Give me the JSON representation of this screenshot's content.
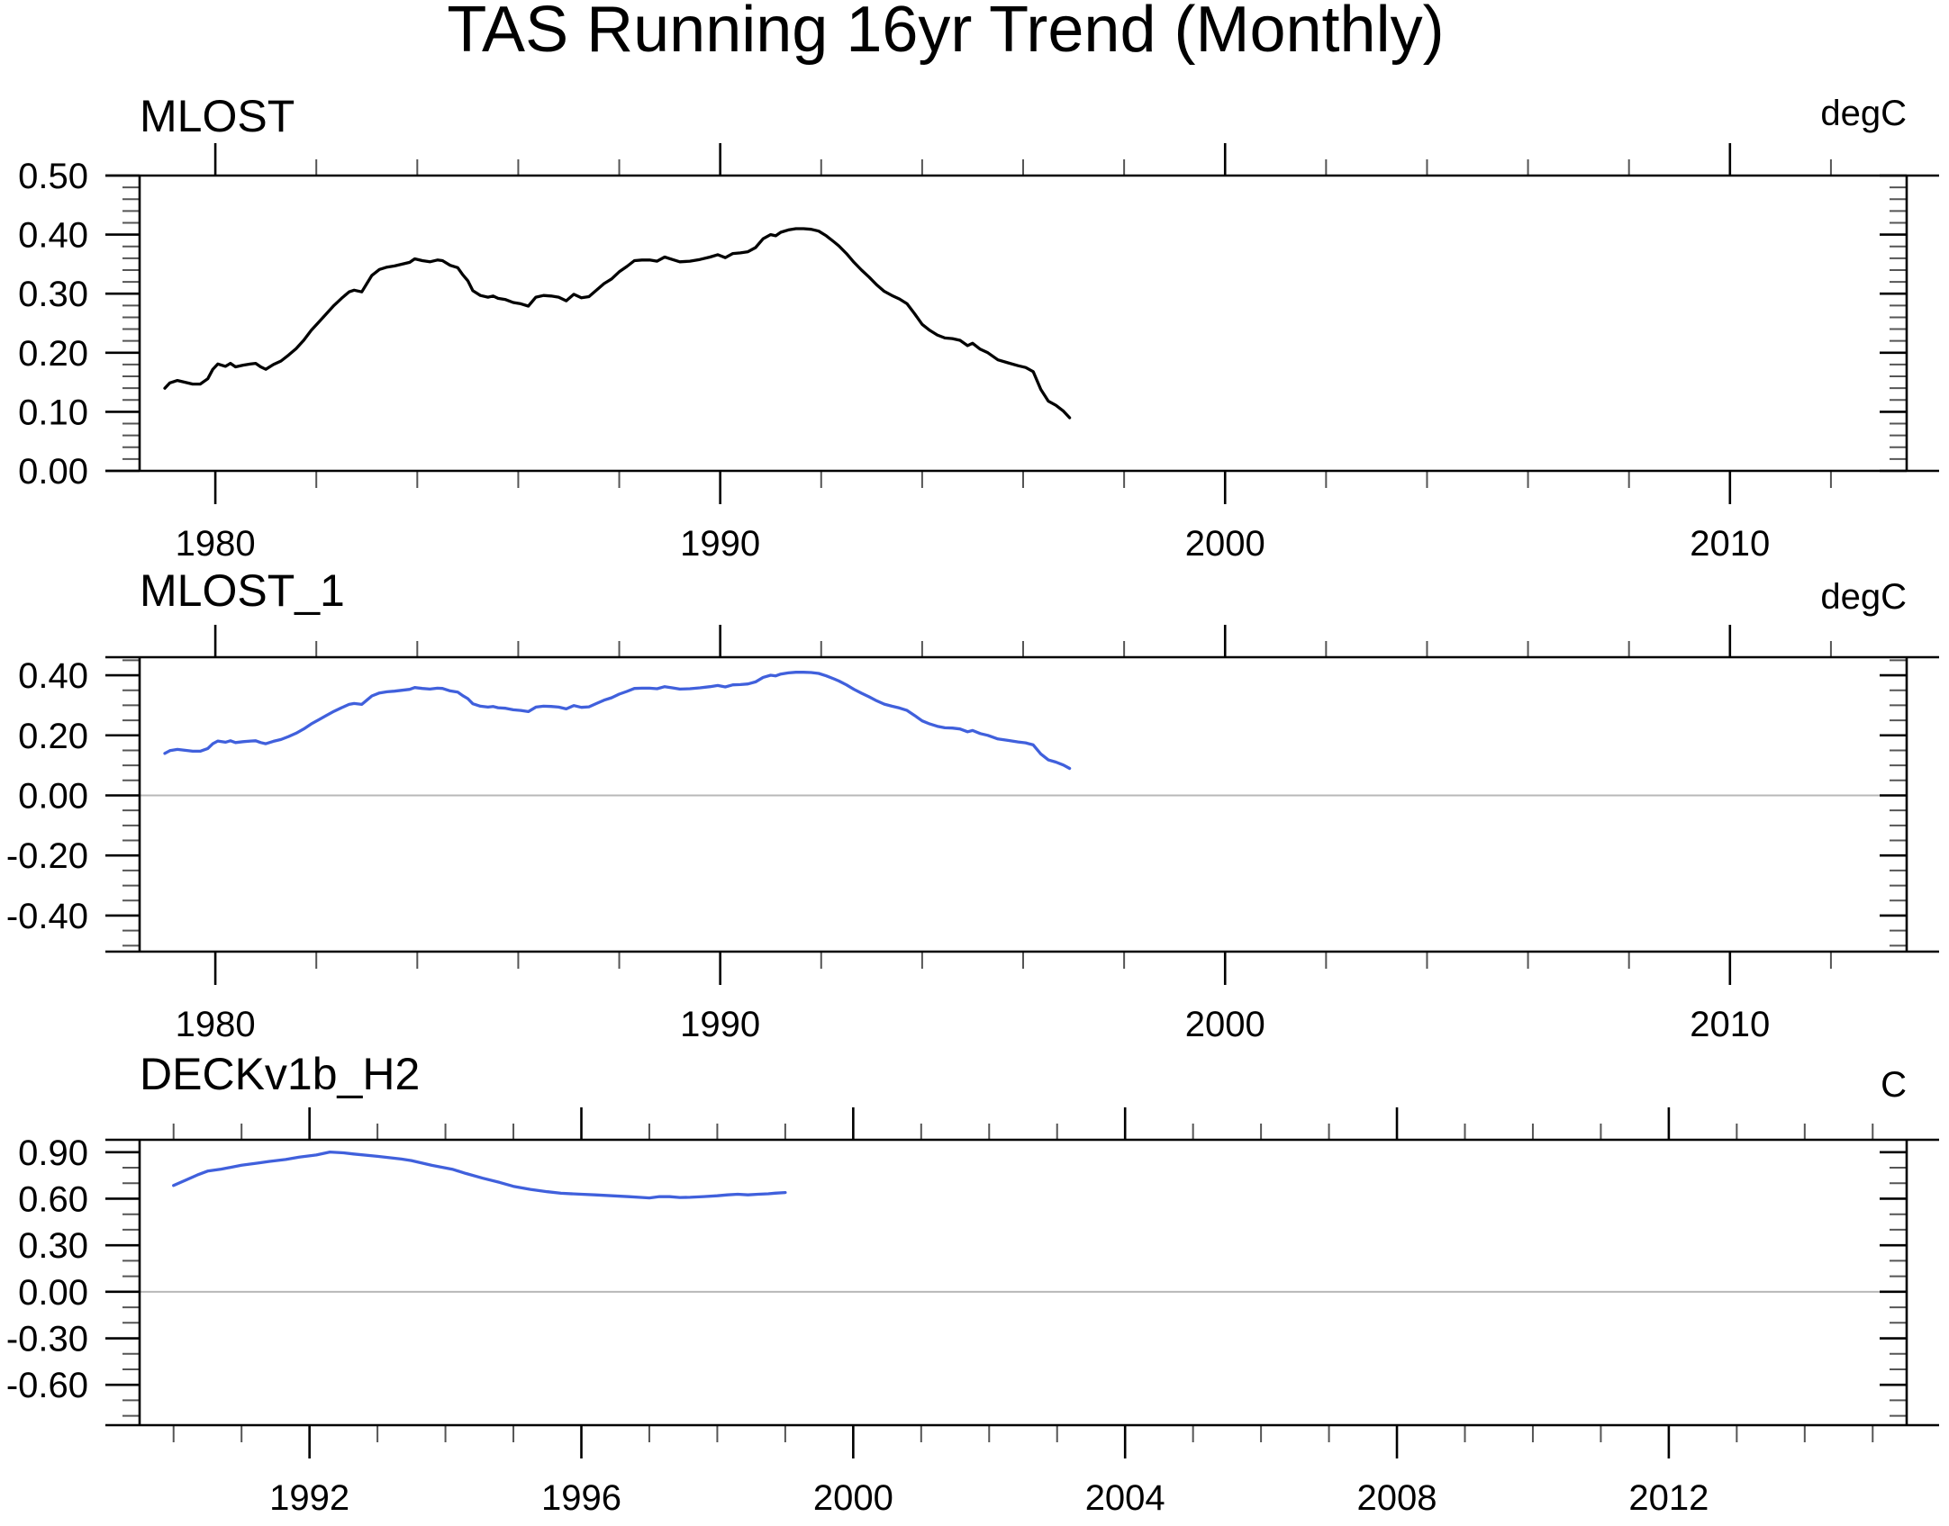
{
  "page": {
    "title": "TAS Running 16yr Trend (Monthly)"
  },
  "colors": {
    "background": "#ffffff",
    "axis": "#000000",
    "minor_tick": "#555555",
    "zero_line": "#b8b8b8",
    "curve_black": "#000000",
    "curve_blue": "#4060DC"
  },
  "chart_data": [
    {
      "type": "line",
      "title": "MLOST",
      "unit_label": "degC",
      "line_color": "#000000",
      "xlim": [
        1978.5,
        2013.5
      ],
      "ylim": [
        0.0,
        0.5
      ],
      "x_major_ticks": [
        1980,
        1990,
        2000,
        2010
      ],
      "x_tick_labels": [
        "1980",
        "1990",
        "2000",
        "2010"
      ],
      "x_minor_step": 2,
      "y_major_ticks": [
        0.5,
        0.4,
        0.3,
        0.2,
        0.1,
        0.0
      ],
      "y_tick_labels": [
        "0.50",
        "0.40",
        "0.30",
        "0.20",
        "0.10",
        "0.00"
      ],
      "y_minor_step": 0.02,
      "zero_line": false,
      "grid": false,
      "legend": "none",
      "series": [
        {
          "name": "MLOST",
          "x": [
            1979.0,
            1979.1,
            1979.25,
            1979.4,
            1979.55,
            1979.7,
            1979.85,
            1979.95,
            1980.05,
            1980.2,
            1980.3,
            1980.4,
            1980.55,
            1980.7,
            1980.8,
            1980.9,
            1981.0,
            1981.15,
            1981.3,
            1981.45,
            1981.6,
            1981.75,
            1981.9,
            1982.05,
            1982.2,
            1982.35,
            1982.5,
            1982.65,
            1982.75,
            1982.9,
            1983.0,
            1983.1,
            1983.25,
            1983.4,
            1983.55,
            1983.7,
            1983.85,
            1983.95,
            1984.1,
            1984.25,
            1984.4,
            1984.5,
            1984.65,
            1984.8,
            1984.9,
            1985.0,
            1985.1,
            1985.25,
            1985.4,
            1985.5,
            1985.6,
            1985.75,
            1985.9,
            1986.05,
            1986.2,
            1986.35,
            1986.5,
            1986.65,
            1986.8,
            1986.95,
            1987.1,
            1987.25,
            1987.4,
            1987.55,
            1987.7,
            1987.85,
            1988.0,
            1988.15,
            1988.3,
            1988.45,
            1988.6,
            1988.75,
            1988.9,
            1989.05,
            1989.2,
            1989.4,
            1989.6,
            1989.8,
            1989.95,
            1990.1,
            1990.25,
            1990.4,
            1990.55,
            1990.7,
            1990.85,
            1991.0,
            1991.1,
            1991.2,
            1991.35,
            1991.5,
            1991.65,
            1991.8,
            1991.95,
            1992.1,
            1992.25,
            1992.35,
            1992.5,
            1992.65,
            1992.8,
            1992.95,
            1993.1,
            1993.25,
            1993.4,
            1993.55,
            1993.7,
            1993.85,
            1994.0,
            1994.15,
            1994.3,
            1994.45,
            1994.6,
            1994.75,
            1994.9,
            1995.0,
            1995.15,
            1995.3,
            1995.5,
            1995.7,
            1995.9,
            1996.05,
            1996.2,
            1996.35,
            1996.5,
            1996.65,
            1996.8,
            1996.92
          ],
          "y": [
            0.14,
            0.149,
            0.153,
            0.15,
            0.147,
            0.147,
            0.156,
            0.172,
            0.181,
            0.177,
            0.182,
            0.176,
            0.179,
            0.181,
            0.182,
            0.176,
            0.172,
            0.18,
            0.186,
            0.196,
            0.207,
            0.221,
            0.238,
            0.252,
            0.266,
            0.28,
            0.292,
            0.303,
            0.306,
            0.303,
            0.317,
            0.331,
            0.341,
            0.345,
            0.347,
            0.35,
            0.353,
            0.359,
            0.356,
            0.354,
            0.357,
            0.356,
            0.348,
            0.344,
            0.332,
            0.322,
            0.305,
            0.297,
            0.294,
            0.296,
            0.292,
            0.29,
            0.285,
            0.283,
            0.279,
            0.294,
            0.297,
            0.296,
            0.294,
            0.288,
            0.299,
            0.293,
            0.295,
            0.306,
            0.317,
            0.325,
            0.337,
            0.346,
            0.356,
            0.357,
            0.357,
            0.355,
            0.362,
            0.358,
            0.354,
            0.355,
            0.358,
            0.362,
            0.366,
            0.361,
            0.368,
            0.369,
            0.371,
            0.378,
            0.393,
            0.4,
            0.398,
            0.404,
            0.408,
            0.41,
            0.41,
            0.409,
            0.406,
            0.398,
            0.388,
            0.381,
            0.368,
            0.353,
            0.34,
            0.328,
            0.315,
            0.304,
            0.297,
            0.291,
            0.283,
            0.266,
            0.248,
            0.238,
            0.23,
            0.225,
            0.224,
            0.221,
            0.212,
            0.216,
            0.206,
            0.2,
            0.188,
            0.183,
            0.178,
            0.175,
            0.168,
            0.138,
            0.118,
            0.111,
            0.101,
            0.09
          ]
        }
      ]
    },
    {
      "type": "line",
      "title": "MLOST_1",
      "unit_label": "degC",
      "line_color": "#4060DC",
      "xlim": [
        1978.5,
        2013.5
      ],
      "ylim": [
        -0.52,
        0.46
      ],
      "x_major_ticks": [
        1980,
        1990,
        2000,
        2010
      ],
      "x_tick_labels": [
        "1980",
        "1990",
        "2000",
        "2010"
      ],
      "x_minor_step": 2,
      "y_major_ticks": [
        0.4,
        0.2,
        0.0,
        -0.2,
        -0.4
      ],
      "y_tick_labels": [
        "0.40",
        "0.20",
        "0.00",
        "-0.20",
        "-0.40"
      ],
      "y_minor_step": 0.05,
      "zero_line": true,
      "grid": false,
      "legend": "none",
      "series": [
        {
          "name": "MLOST_1",
          "x": [
            1979.0,
            1979.1,
            1979.25,
            1979.4,
            1979.55,
            1979.7,
            1979.85,
            1979.95,
            1980.05,
            1980.2,
            1980.3,
            1980.4,
            1980.55,
            1980.7,
            1980.8,
            1980.9,
            1981.0,
            1981.15,
            1981.3,
            1981.45,
            1981.6,
            1981.75,
            1981.9,
            1982.05,
            1982.2,
            1982.35,
            1982.5,
            1982.65,
            1982.75,
            1982.9,
            1983.0,
            1983.1,
            1983.25,
            1983.4,
            1983.55,
            1983.7,
            1983.85,
            1983.95,
            1984.1,
            1984.25,
            1984.4,
            1984.5,
            1984.65,
            1984.8,
            1984.9,
            1985.0,
            1985.1,
            1985.25,
            1985.4,
            1985.5,
            1985.6,
            1985.75,
            1985.9,
            1986.05,
            1986.2,
            1986.35,
            1986.5,
            1986.65,
            1986.8,
            1986.95,
            1987.1,
            1987.25,
            1987.4,
            1987.55,
            1987.7,
            1987.85,
            1988.0,
            1988.15,
            1988.3,
            1988.45,
            1988.6,
            1988.75,
            1988.9,
            1989.05,
            1989.2,
            1989.4,
            1989.6,
            1989.8,
            1989.95,
            1990.1,
            1990.25,
            1990.4,
            1990.55,
            1990.7,
            1990.85,
            1991.0,
            1991.1,
            1991.2,
            1991.35,
            1991.5,
            1991.65,
            1991.8,
            1991.95,
            1992.1,
            1992.25,
            1992.35,
            1992.5,
            1992.65,
            1992.8,
            1992.95,
            1993.1,
            1993.25,
            1993.4,
            1993.55,
            1993.7,
            1993.85,
            1994.0,
            1994.15,
            1994.3,
            1994.45,
            1994.6,
            1994.75,
            1994.9,
            1995.0,
            1995.15,
            1995.3,
            1995.5,
            1995.7,
            1995.9,
            1996.05,
            1996.2,
            1996.35,
            1996.5,
            1996.65,
            1996.8,
            1996.92
          ],
          "y": [
            0.14,
            0.149,
            0.153,
            0.15,
            0.147,
            0.147,
            0.156,
            0.172,
            0.181,
            0.177,
            0.182,
            0.176,
            0.179,
            0.181,
            0.182,
            0.176,
            0.172,
            0.18,
            0.186,
            0.196,
            0.207,
            0.221,
            0.238,
            0.252,
            0.266,
            0.28,
            0.292,
            0.303,
            0.306,
            0.303,
            0.317,
            0.331,
            0.341,
            0.345,
            0.347,
            0.35,
            0.353,
            0.359,
            0.356,
            0.354,
            0.357,
            0.356,
            0.348,
            0.344,
            0.332,
            0.322,
            0.305,
            0.297,
            0.294,
            0.296,
            0.292,
            0.29,
            0.285,
            0.283,
            0.279,
            0.294,
            0.297,
            0.296,
            0.294,
            0.288,
            0.299,
            0.293,
            0.295,
            0.306,
            0.317,
            0.325,
            0.337,
            0.346,
            0.356,
            0.357,
            0.357,
            0.355,
            0.362,
            0.358,
            0.354,
            0.355,
            0.358,
            0.362,
            0.366,
            0.361,
            0.368,
            0.369,
            0.371,
            0.378,
            0.393,
            0.4,
            0.398,
            0.404,
            0.408,
            0.41,
            0.41,
            0.409,
            0.406,
            0.398,
            0.388,
            0.381,
            0.368,
            0.353,
            0.34,
            0.328,
            0.315,
            0.304,
            0.297,
            0.291,
            0.283,
            0.266,
            0.248,
            0.238,
            0.23,
            0.225,
            0.224,
            0.221,
            0.212,
            0.216,
            0.206,
            0.2,
            0.188,
            0.183,
            0.178,
            0.175,
            0.168,
            0.138,
            0.118,
            0.111,
            0.101,
            0.09
          ]
        }
      ]
    },
    {
      "type": "line",
      "title": "DECKv1b_H2",
      "unit_label": "C",
      "line_color": "#4060DC",
      "xlim": [
        1989.5,
        2015.5
      ],
      "ylim": [
        -0.86,
        0.98
      ],
      "x_major_ticks": [
        1992,
        1996,
        2000,
        2004,
        2008,
        2012
      ],
      "x_tick_labels": [
        "1992",
        "1996",
        "2000",
        "2004",
        "2008",
        "2012"
      ],
      "x_minor_step": 1,
      "y_major_ticks": [
        0.9,
        0.6,
        0.3,
        0.0,
        -0.3,
        -0.6
      ],
      "y_tick_labels": [
        "0.90",
        "0.60",
        "0.30",
        "0.00",
        "-0.30",
        "-0.60"
      ],
      "y_minor_step": 0.1,
      "zero_line": true,
      "grid": false,
      "legend": "none",
      "series": [
        {
          "name": "DECKv1b_H2",
          "x": [
            1990.0,
            1990.2,
            1990.35,
            1990.5,
            1990.7,
            1990.9,
            1991.0,
            1991.25,
            1991.4,
            1991.65,
            1991.85,
            1992.1,
            1992.3,
            1992.5,
            1992.65,
            1993.0,
            1993.35,
            1993.5,
            1993.8,
            1994.1,
            1994.3,
            1994.55,
            1994.8,
            1995.0,
            1995.25,
            1995.5,
            1995.7,
            1996.0,
            1996.2,
            1996.45,
            1996.7,
            1996.9,
            1997.0,
            1997.15,
            1997.3,
            1997.45,
            1997.6,
            1997.8,
            1998.0,
            1998.15,
            1998.3,
            1998.45,
            1998.6,
            1998.75,
            1998.85,
            1999.0
          ],
          "y": [
            0.685,
            0.724,
            0.753,
            0.778,
            0.791,
            0.807,
            0.816,
            0.83,
            0.84,
            0.853,
            0.868,
            0.882,
            0.901,
            0.896,
            0.888,
            0.873,
            0.856,
            0.846,
            0.815,
            0.79,
            0.763,
            0.732,
            0.705,
            0.68,
            0.66,
            0.645,
            0.635,
            0.629,
            0.625,
            0.619,
            0.613,
            0.608,
            0.605,
            0.614,
            0.613,
            0.608,
            0.609,
            0.614,
            0.619,
            0.625,
            0.629,
            0.625,
            0.629,
            0.632,
            0.636,
            0.64
          ]
        }
      ]
    }
  ]
}
